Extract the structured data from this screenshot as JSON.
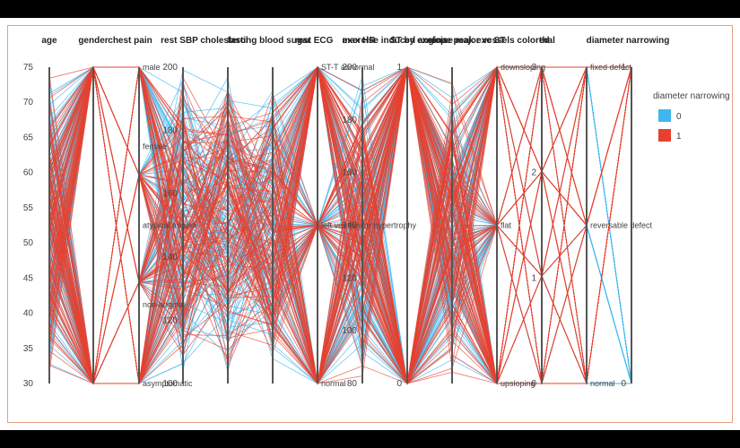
{
  "chart_data": {
    "type": "parallel_coordinates",
    "dimensions": [
      {
        "name": "age",
        "ticks": [
          "30",
          "35",
          "40",
          "45",
          "50",
          "55",
          "60",
          "65",
          "70",
          "75"
        ]
      },
      {
        "name": "gender",
        "ticks": []
      },
      {
        "name": "chest pain",
        "ticks": [
          "male",
          "female",
          "atypical angina",
          "non-anginal",
          "asymptomatic"
        ]
      },
      {
        "name": "rest SBP",
        "ticks": [
          "200",
          "180",
          "160",
          "140",
          "120",
          "100"
        ]
      },
      {
        "name": "cholesterol",
        "ticks": []
      },
      {
        "name": "fasting blood sugar",
        "ticks": []
      },
      {
        "name": "rest ECG",
        "ticks": [
          "ST-T abnormal",
          "left ventricular hypertrophy",
          "normal"
        ]
      },
      {
        "name": "max HR",
        "ticks": [
          "200",
          "180",
          "160",
          "140",
          "120",
          "100",
          "80"
        ]
      },
      {
        "name": "exercise induced angina",
        "ticks": [
          "1",
          "0"
        ]
      },
      {
        "name": "ST by exercise",
        "ticks": []
      },
      {
        "name": "slope peak exc ST",
        "ticks": [
          "downsloping",
          "flat",
          "upsloping"
        ]
      },
      {
        "name": "major vessels colored",
        "ticks": [
          "3",
          "2",
          "1",
          "0"
        ]
      },
      {
        "name": "thal",
        "ticks": [
          "fixed defect",
          "reversable defect",
          "normal"
        ]
      },
      {
        "name": "diameter narrowing",
        "ticks": [
          "1",
          "0"
        ]
      }
    ],
    "legend": {
      "title": "diameter narrowing",
      "items": [
        {
          "label": "0",
          "color": "#3fb6ee"
        },
        {
          "label": "1",
          "color": "#e8402e"
        }
      ]
    },
    "colors": {
      "class0": "#3fb6ee",
      "class1": "#e8402e"
    }
  }
}
